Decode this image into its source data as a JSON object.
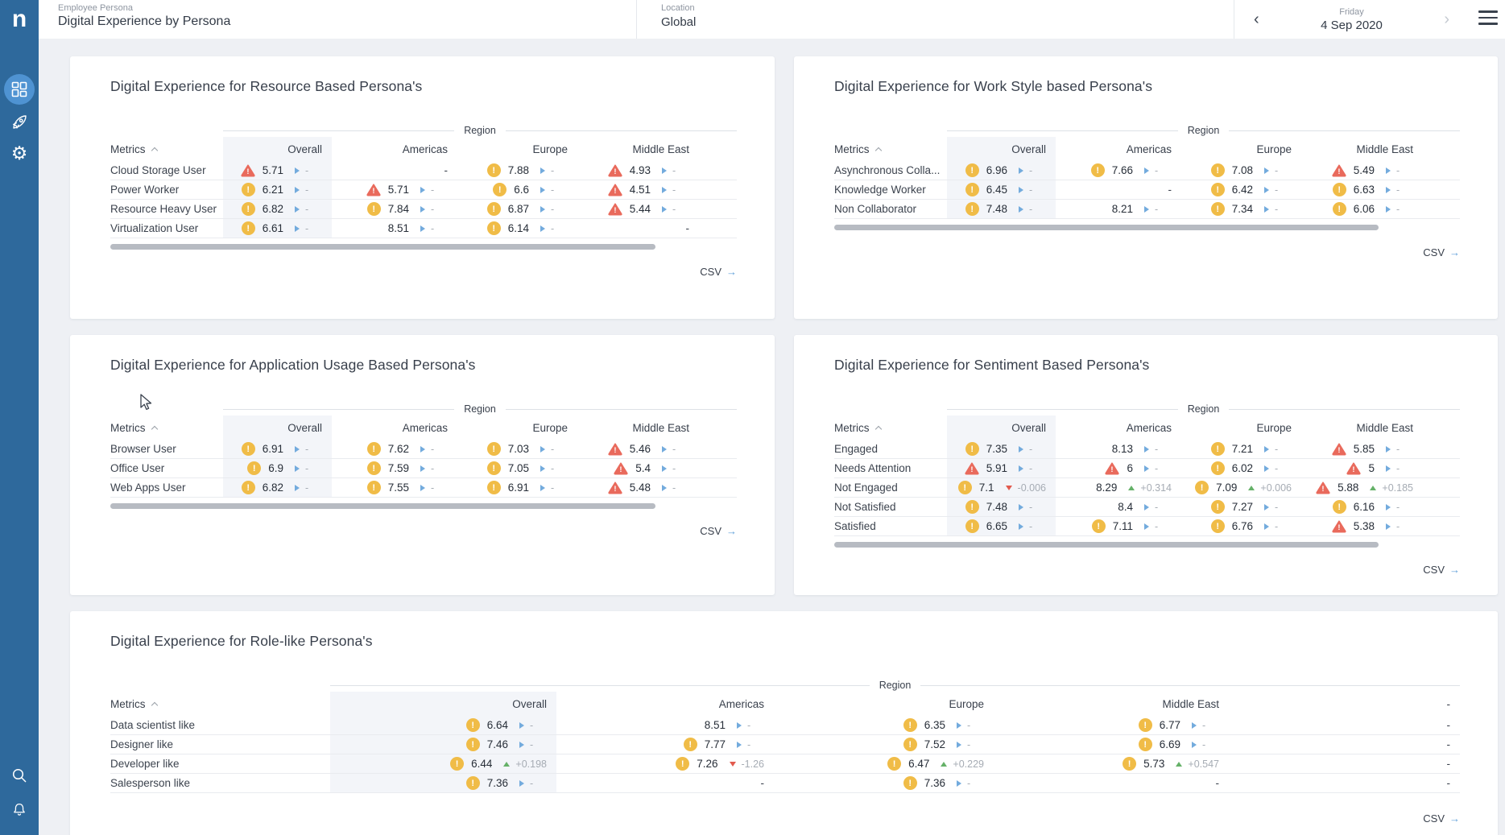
{
  "header": {
    "logo": "n",
    "breadcrumb": "Employee Persona",
    "title": "Digital Experience by Persona",
    "location_label": "Location",
    "location_value": "Global",
    "day_label": "Friday",
    "date_value": "4 Sep 2020"
  },
  "sidebar": {
    "items": [
      {
        "name": "dashboards",
        "active": true
      },
      {
        "name": "launch",
        "active": false
      },
      {
        "name": "settings",
        "active": false
      },
      {
        "name": "search",
        "active": false
      },
      {
        "name": "notifications",
        "active": false
      }
    ]
  },
  "labels": {
    "metrics": "Metrics",
    "region": "Region",
    "csv": "CSV"
  },
  "colors": {
    "sidebar": "#2e699c",
    "sidebar_active": "#4f93d2",
    "critical": "#e96a5c",
    "warning": "#f0bc47",
    "trend_flat": "#73abdd",
    "trend_up": "#65b168",
    "trend_down": "#e25a4e"
  },
  "cards": [
    {
      "title": "Digital Experience for Resource Based Persona's",
      "columns": [
        "Overall",
        "Americas",
        "Europe",
        "Middle East"
      ],
      "scrollbar": true,
      "rows": [
        {
          "label": "Cloud Storage User",
          "cells": [
            {
              "i": "c",
              "v": "5.71",
              "t": "flat",
              "d": "-"
            },
            {
              "v": "-"
            },
            {
              "i": "w",
              "v": "7.88",
              "t": "flat",
              "d": "-"
            },
            {
              "i": "c",
              "v": "4.93",
              "t": "flat",
              "d": "-"
            }
          ]
        },
        {
          "label": "Power Worker",
          "cells": [
            {
              "i": "w",
              "v": "6.21",
              "t": "flat",
              "d": "-"
            },
            {
              "i": "c",
              "v": "5.71",
              "t": "flat",
              "d": "-"
            },
            {
              "i": "w",
              "v": "6.6",
              "t": "flat",
              "d": "-"
            },
            {
              "i": "c",
              "v": "4.51",
              "t": "flat",
              "d": "-"
            }
          ]
        },
        {
          "label": "Resource Heavy User",
          "cells": [
            {
              "i": "w",
              "v": "6.82",
              "t": "flat",
              "d": "-"
            },
            {
              "i": "w",
              "v": "7.84",
              "t": "flat",
              "d": "-"
            },
            {
              "i": "w",
              "v": "6.87",
              "t": "flat",
              "d": "-"
            },
            {
              "i": "c",
              "v": "5.44",
              "t": "flat",
              "d": "-"
            }
          ]
        },
        {
          "label": "Virtualization User",
          "cells": [
            {
              "i": "w",
              "v": "6.61",
              "t": "flat",
              "d": "-"
            },
            {
              "v": "8.51",
              "t": "flat",
              "d": "-"
            },
            {
              "i": "w",
              "v": "6.14",
              "t": "flat",
              "d": "-"
            },
            {
              "v": "-"
            }
          ]
        }
      ]
    },
    {
      "title": "Digital Experience for Work Style based Persona's",
      "columns": [
        "Overall",
        "Americas",
        "Europe",
        "Middle East"
      ],
      "scrollbar": true,
      "rows": [
        {
          "label": "Asynchronous Colla...",
          "cells": [
            {
              "i": "w",
              "v": "6.96",
              "t": "flat",
              "d": "-"
            },
            {
              "i": "w",
              "v": "7.66",
              "t": "flat",
              "d": "-"
            },
            {
              "i": "w",
              "v": "7.08",
              "t": "flat",
              "d": "-"
            },
            {
              "i": "c",
              "v": "5.49",
              "t": "flat",
              "d": "-"
            }
          ]
        },
        {
          "label": "Knowledge Worker",
          "cells": [
            {
              "i": "w",
              "v": "6.45",
              "t": "flat",
              "d": "-"
            },
            {
              "v": "-"
            },
            {
              "i": "w",
              "v": "6.42",
              "t": "flat",
              "d": "-"
            },
            {
              "i": "w",
              "v": "6.63",
              "t": "flat",
              "d": "-"
            }
          ]
        },
        {
          "label": "Non Collaborator",
          "cells": [
            {
              "i": "w",
              "v": "7.48",
              "t": "flat",
              "d": "-"
            },
            {
              "v": "8.21",
              "t": "flat",
              "d": "-"
            },
            {
              "i": "w",
              "v": "7.34",
              "t": "flat",
              "d": "-"
            },
            {
              "i": "w",
              "v": "6.06",
              "t": "flat",
              "d": "-"
            }
          ]
        }
      ]
    },
    {
      "title": "Digital Experience for Application Usage Based Persona's",
      "columns": [
        "Overall",
        "Americas",
        "Europe",
        "Middle East"
      ],
      "scrollbar": true,
      "rows": [
        {
          "label": "Browser User",
          "cells": [
            {
              "i": "w",
              "v": "6.91",
              "t": "flat",
              "d": "-"
            },
            {
              "i": "w",
              "v": "7.62",
              "t": "flat",
              "d": "-"
            },
            {
              "i": "w",
              "v": "7.03",
              "t": "flat",
              "d": "-"
            },
            {
              "i": "c",
              "v": "5.46",
              "t": "flat",
              "d": "-"
            }
          ]
        },
        {
          "label": "Office User",
          "cells": [
            {
              "i": "w",
              "v": "6.9",
              "t": "flat",
              "d": "-"
            },
            {
              "i": "w",
              "v": "7.59",
              "t": "flat",
              "d": "-"
            },
            {
              "i": "w",
              "v": "7.05",
              "t": "flat",
              "d": "-"
            },
            {
              "i": "c",
              "v": "5.4",
              "t": "flat",
              "d": "-"
            }
          ]
        },
        {
          "label": "Web Apps User",
          "cells": [
            {
              "i": "w",
              "v": "6.82",
              "t": "flat",
              "d": "-"
            },
            {
              "i": "w",
              "v": "7.55",
              "t": "flat",
              "d": "-"
            },
            {
              "i": "w",
              "v": "6.91",
              "t": "flat",
              "d": "-"
            },
            {
              "i": "c",
              "v": "5.48",
              "t": "flat",
              "d": "-"
            }
          ]
        }
      ]
    },
    {
      "title": "Digital Experience for Sentiment Based Persona's",
      "columns": [
        "Overall",
        "Americas",
        "Europe",
        "Middle East"
      ],
      "scrollbar": true,
      "rows": [
        {
          "label": "Engaged",
          "cells": [
            {
              "i": "w",
              "v": "7.35",
              "t": "flat",
              "d": "-"
            },
            {
              "v": "8.13",
              "t": "flat",
              "d": "-"
            },
            {
              "i": "w",
              "v": "7.21",
              "t": "flat",
              "d": "-"
            },
            {
              "i": "c",
              "v": "5.85",
              "t": "flat",
              "d": "-"
            }
          ]
        },
        {
          "label": "Needs Attention",
          "cells": [
            {
              "i": "c",
              "v": "5.91",
              "t": "flat",
              "d": "-"
            },
            {
              "i": "c",
              "v": "6",
              "t": "flat",
              "d": "-"
            },
            {
              "i": "w",
              "v": "6.02",
              "t": "flat",
              "d": "-"
            },
            {
              "i": "c",
              "v": "5",
              "t": "flat",
              "d": "-"
            }
          ]
        },
        {
          "label": "Not Engaged",
          "cells": [
            {
              "i": "w",
              "v": "7.1",
              "t": "down",
              "d": "-0.006"
            },
            {
              "v": "8.29",
              "t": "up",
              "d": "+0.314"
            },
            {
              "i": "w",
              "v": "7.09",
              "t": "up",
              "d": "+0.006"
            },
            {
              "i": "c",
              "v": "5.88",
              "t": "up",
              "d": "+0.185"
            }
          ]
        },
        {
          "label": "Not Satisfied",
          "cells": [
            {
              "i": "w",
              "v": "7.48",
              "t": "flat",
              "d": "-"
            },
            {
              "v": "8.4",
              "t": "flat",
              "d": "-"
            },
            {
              "i": "w",
              "v": "7.27",
              "t": "flat",
              "d": "-"
            },
            {
              "i": "w",
              "v": "6.16",
              "t": "flat",
              "d": "-"
            }
          ]
        },
        {
          "label": "Satisfied",
          "cells": [
            {
              "i": "w",
              "v": "6.65",
              "t": "flat",
              "d": "-"
            },
            {
              "i": "w",
              "v": "7.11",
              "t": "flat",
              "d": "-"
            },
            {
              "i": "w",
              "v": "6.76",
              "t": "flat",
              "d": "-"
            },
            {
              "i": "c",
              "v": "5.38",
              "t": "flat",
              "d": "-"
            }
          ]
        }
      ]
    },
    {
      "title": "Digital Experience for Role-like Persona's",
      "columns": [
        "Overall",
        "Americas",
        "Europe",
        "Middle East",
        "-"
      ],
      "scrollbar": false,
      "rows": [
        {
          "label": "Data scientist like",
          "cells": [
            {
              "i": "w",
              "v": "6.64",
              "t": "flat",
              "d": "-"
            },
            {
              "v": "8.51",
              "t": "flat",
              "d": "-"
            },
            {
              "i": "w",
              "v": "6.35",
              "t": "flat",
              "d": "-"
            },
            {
              "i": "w",
              "v": "6.77",
              "t": "flat",
              "d": "-"
            },
            {
              "v": "-"
            }
          ]
        },
        {
          "label": "Designer like",
          "cells": [
            {
              "i": "w",
              "v": "7.46",
              "t": "flat",
              "d": "-"
            },
            {
              "i": "w",
              "v": "7.77",
              "t": "flat",
              "d": "-"
            },
            {
              "i": "w",
              "v": "7.52",
              "t": "flat",
              "d": "-"
            },
            {
              "i": "w",
              "v": "6.69",
              "t": "flat",
              "d": "-"
            },
            {
              "v": "-"
            }
          ]
        },
        {
          "label": "Developer like",
          "cells": [
            {
              "i": "w",
              "v": "6.44",
              "t": "up",
              "d": "+0.198"
            },
            {
              "i": "w",
              "v": "7.26",
              "t": "down",
              "d": "-1.26"
            },
            {
              "i": "w",
              "v": "6.47",
              "t": "up",
              "d": "+0.229"
            },
            {
              "i": "w",
              "v": "5.73",
              "t": "up",
              "d": "+0.547"
            },
            {
              "v": "-"
            }
          ]
        },
        {
          "label": "Salesperson like",
          "cells": [
            {
              "i": "w",
              "v": "7.36",
              "t": "flat",
              "d": "-"
            },
            {
              "v": "-"
            },
            {
              "i": "w",
              "v": "7.36",
              "t": "flat",
              "d": "-"
            },
            {
              "v": "-"
            },
            {
              "v": "-"
            }
          ]
        }
      ]
    }
  ]
}
